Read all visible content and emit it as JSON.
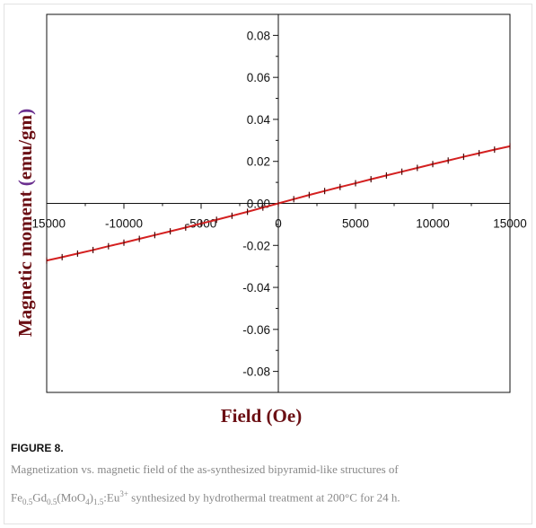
{
  "chart_data": {
    "type": "line",
    "title": "",
    "xlabel": "Field (Oe)",
    "ylabel_parts": [
      "Magnetic moment ",
      "(",
      "emu/gm",
      ")"
    ],
    "xlim": [
      -15000,
      15000
    ],
    "ylim": [
      -0.09,
      0.09
    ],
    "x_ticks": [
      -15000,
      -10000,
      -5000,
      0,
      5000,
      10000,
      15000
    ],
    "y_ticks": [
      -0.08,
      -0.06,
      -0.04,
      -0.02,
      0.0,
      0.02,
      0.04,
      0.06,
      0.08
    ],
    "x_tick_labels": [
      "-15000",
      "-10000",
      "-5000",
      "0",
      "5000",
      "10000",
      "15000"
    ],
    "y_tick_labels": [
      "-0.08",
      "-0.06",
      "-0.04",
      "-0.02",
      "0.00",
      "0.02",
      "0.04",
      "0.06",
      "0.08"
    ],
    "grid": false,
    "colors": {
      "series": "#d42020",
      "marker": "#4a0a0a",
      "axis": "#111111",
      "label": "#6b0f14"
    },
    "series": [
      {
        "x": [
          -15000,
          -14000,
          -13000,
          -12000,
          -11000,
          -10000,
          -9000,
          -8000,
          -7000,
          -6000,
          -5000,
          -4000,
          -3000,
          -2000,
          -1000,
          0,
          1000,
          2000,
          3000,
          4000,
          5000,
          6000,
          7000,
          8000,
          9000,
          10000,
          11000,
          12000,
          13000,
          14000,
          15000
        ],
        "values": [
          -0.0272,
          -0.0256,
          -0.0239,
          -0.0222,
          -0.0204,
          -0.0187,
          -0.0169,
          -0.0151,
          -0.0133,
          -0.0115,
          -0.0096,
          -0.0078,
          -0.0059,
          -0.004,
          -0.002,
          0.0,
          0.002,
          0.004,
          0.0059,
          0.0078,
          0.0096,
          0.0115,
          0.0133,
          0.0151,
          0.0169,
          0.0187,
          0.0204,
          0.0222,
          0.0239,
          0.0256,
          0.0272
        ]
      }
    ]
  },
  "caption": {
    "title": "FIGURE 8.",
    "line1": "Magnetization vs. magnetic field of the as-synthesized bipyramid-like structures of",
    "formula": {
      "p1": "Fe",
      "s1": "0.5",
      "p2": "Gd",
      "s2": "0.5",
      "p3": "(MoO",
      "s3": "4",
      "p4": ")",
      "s4": "1.5",
      "p5": ":Eu",
      "sup": "3+"
    },
    "line2_rest": " synthesized by hydrothermal treatment at 200°C for 24 h."
  }
}
